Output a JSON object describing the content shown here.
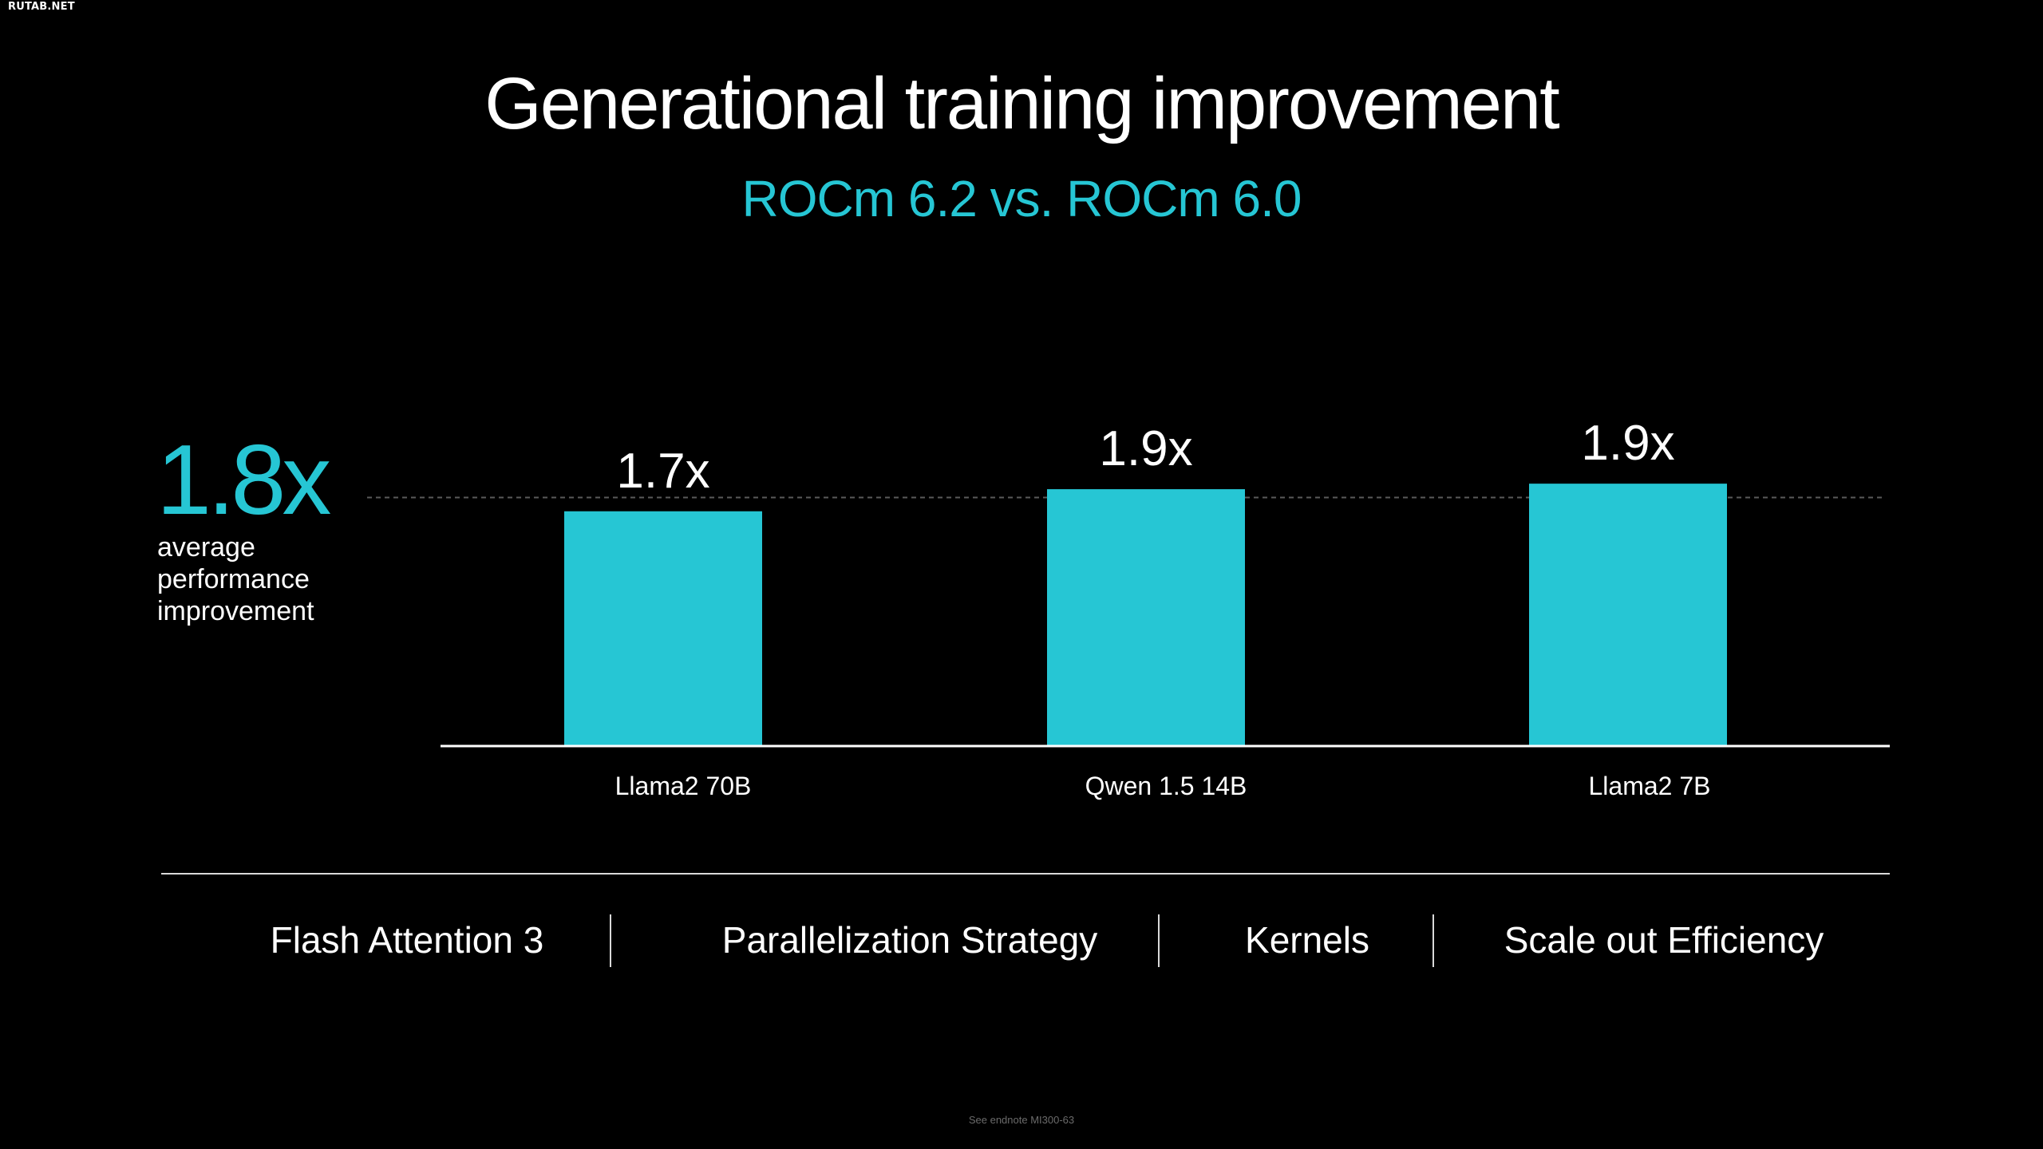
{
  "watermark": "RUTAB.NET",
  "title": "Generational training improvement",
  "subtitle": "ROCm 6.2 vs. ROCm 6.0",
  "average": {
    "value": "1.8x",
    "label_lines": [
      "average",
      "performance",
      "improvement"
    ]
  },
  "chart_data": {
    "type": "bar",
    "categories": [
      "Llama2 70B",
      "Qwen 1.5 14B",
      "Llama2 7B"
    ],
    "values": [
      1.7,
      1.86,
      1.9
    ],
    "data_labels": [
      "1.7x",
      "1.9x",
      "1.9x"
    ],
    "reference_line": {
      "value": 1.8,
      "style": "dashed"
    },
    "ylim": [
      0,
      2.08
    ],
    "xlabel": "",
    "ylabel": "",
    "bar_color": "#26c6d4",
    "grid": false,
    "legend": "none"
  },
  "factors": [
    "Flash Attention 3",
    "Parallelization Strategy",
    "Kernels",
    "Scale out Efficiency"
  ],
  "footnote": "See endnote MI300-63",
  "colors": {
    "background": "#000000",
    "accent": "#26c6d4",
    "text": "#ffffff"
  }
}
